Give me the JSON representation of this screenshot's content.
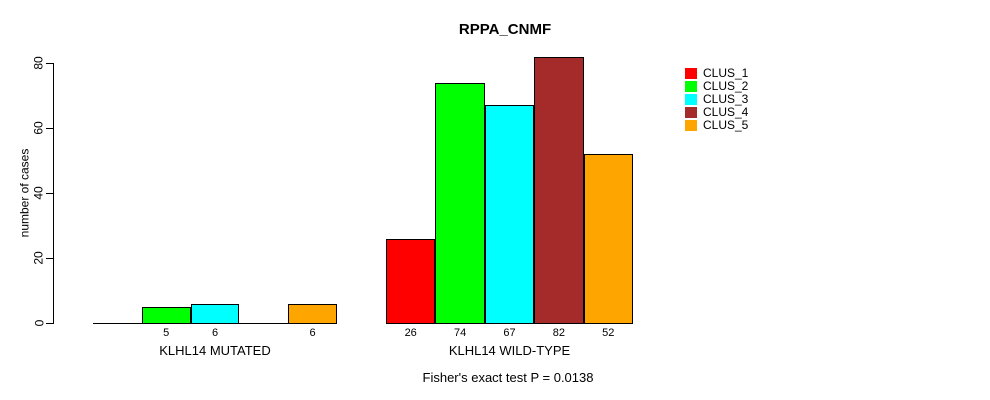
{
  "chart_data": {
    "type": "bar",
    "title": "RPPA_CNMF",
    "ylabel": "number of cases",
    "ylim": [
      0,
      80
    ],
    "yticks": [
      0,
      20,
      40,
      60,
      80
    ],
    "grid": false,
    "legend_position": "right",
    "series": [
      "CLUS_1",
      "CLUS_2",
      "CLUS_3",
      "CLUS_4",
      "CLUS_5"
    ],
    "colors": [
      "#ff0000",
      "#00ff00",
      "#00ffff",
      "#a52a2a",
      "#ffa500"
    ],
    "groups": [
      {
        "label": "KLHL14 MUTATED",
        "values": [
          0,
          5,
          6,
          0,
          6
        ],
        "bar_labels": [
          "",
          "5",
          "6",
          "",
          "6"
        ]
      },
      {
        "label": "KLHL14 WILD-TYPE",
        "values": [
          26,
          74,
          67,
          82,
          52
        ],
        "bar_labels": [
          "26",
          "74",
          "67",
          "82",
          "52"
        ]
      }
    ],
    "annotation": "Fisher's exact test P = 0.0138"
  }
}
